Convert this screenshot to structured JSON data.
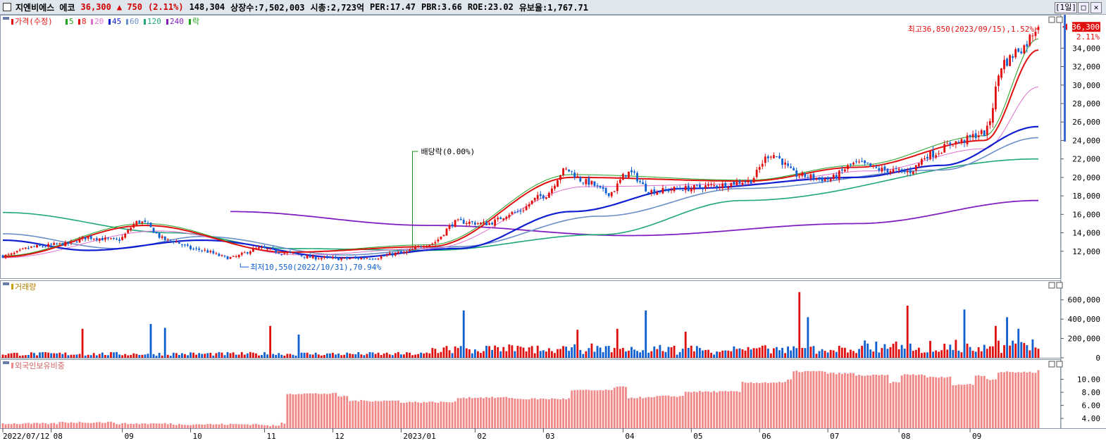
{
  "header": {
    "name": "지엔비에스 에코",
    "price": "36,300",
    "change": "▲ 750",
    "change_pct": "(2.11%)",
    "volume": "148,304",
    "listed": "상장수:7,502,003",
    "cap": "시총:2,723억",
    "per": "PER:17.47",
    "pbr": "PBR:3.66",
    "roe": "ROE:23.02",
    "float": "유보율:1,767.71",
    "period": "[1일]",
    "btn_restore": "□",
    "btn_close": "✕"
  },
  "colors": {
    "up": "#e01010",
    "down": "#1060d0",
    "ma5": "#22a022",
    "ma8": "#e01010",
    "ma20": "#e070d0",
    "ma45": "#1020d0",
    "ma60": "#6a8fc8",
    "ma120": "#20a878",
    "ma240": "#8020c0",
    "foreign": "#f08a8a"
  },
  "legend": {
    "price": "가격(수정)",
    "items": [
      {
        "label": "5",
        "color": "#22a022"
      },
      {
        "label": "8",
        "color": "#e01010"
      },
      {
        "label": "20",
        "color": "#e070d0"
      },
      {
        "label": "45",
        "color": "#1020d0"
      },
      {
        "label": "60",
        "color": "#6a8fc8"
      },
      {
        "label": "120",
        "color": "#20a878"
      },
      {
        "label": "240",
        "color": "#8020c0"
      },
      {
        "label": "락",
        "color": "#22a022"
      }
    ],
    "volume": "거래량",
    "foreign": "외국인보유비중"
  },
  "annotations": {
    "high": "최고36,850(2023/09/15),1.52%",
    "low": "최저10,550(2022/10/31),70.94%",
    "dividend": "배당락(0.00%)",
    "last_price": "36,300",
    "last_pct": "2.11%"
  },
  "chart_data": [
    {
      "type": "candlestick",
      "title": "가격(수정)",
      "x_dates": [
        "2022/07/12",
        "08",
        "09",
        "10",
        "11",
        "12",
        "2023/01",
        "02",
        "03",
        "04",
        "05",
        "06",
        "07",
        "08",
        "09"
      ],
      "ylim": [
        10000,
        37000
      ],
      "yticks": [
        "12,000",
        "14,000",
        "16,000",
        "18,000",
        "20,000",
        "22,000",
        "24,000",
        "26,000",
        "28,000",
        "30,000",
        "32,000",
        "34,000"
      ],
      "close_keypoints": [
        [
          0,
          11500
        ],
        [
          12,
          12500
        ],
        [
          22,
          12800
        ],
        [
          30,
          13500
        ],
        [
          40,
          13200
        ],
        [
          48,
          15200
        ],
        [
          58,
          13200
        ],
        [
          68,
          12200
        ],
        [
          80,
          11300
        ],
        [
          90,
          12300
        ],
        [
          100,
          11800
        ],
        [
          110,
          11300
        ],
        [
          120,
          11200
        ],
        [
          130,
          11300
        ],
        [
          140,
          11800
        ],
        [
          150,
          12800
        ],
        [
          160,
          15200
        ],
        [
          170,
          15000
        ],
        [
          180,
          16200
        ],
        [
          190,
          18000
        ],
        [
          198,
          20800
        ],
        [
          205,
          19500
        ],
        [
          213,
          18300
        ],
        [
          220,
          20500
        ],
        [
          228,
          18500
        ],
        [
          240,
          18800
        ],
        [
          250,
          19100
        ],
        [
          262,
          19600
        ],
        [
          270,
          22500
        ],
        [
          280,
          20200
        ],
        [
          290,
          19800
        ],
        [
          300,
          21500
        ],
        [
          310,
          20800
        ],
        [
          318,
          20600
        ],
        [
          326,
          22500
        ],
        [
          335,
          23800
        ],
        [
          345,
          24800
        ],
        [
          352,
          32500
        ],
        [
          358,
          34000
        ],
        [
          364,
          36300
        ]
      ],
      "ma": {
        "ma5": [
          [
            0,
            11500
          ],
          [
            50,
            15000
          ],
          [
            100,
            11900
          ],
          [
            150,
            12700
          ],
          [
            200,
            20300
          ],
          [
            262,
            19700
          ],
          [
            300,
            21300
          ],
          [
            345,
            24500
          ],
          [
            364,
            35000
          ]
        ],
        "ma8": [
          [
            0,
            11400
          ],
          [
            50,
            14800
          ],
          [
            100,
            11900
          ],
          [
            150,
            12500
          ],
          [
            200,
            20000
          ],
          [
            262,
            19600
          ],
          [
            300,
            21100
          ],
          [
            345,
            24000
          ],
          [
            364,
            33800
          ]
        ],
        "ma20": [
          [
            0,
            11300
          ],
          [
            55,
            14200
          ],
          [
            105,
            11600
          ],
          [
            150,
            12300
          ],
          [
            205,
            19000
          ],
          [
            262,
            19300
          ],
          [
            305,
            20700
          ],
          [
            345,
            23100
          ],
          [
            364,
            29800
          ]
        ],
        "ma45": [
          [
            0,
            13200
          ],
          [
            30,
            12100
          ],
          [
            70,
            13200
          ],
          [
            120,
            11300
          ],
          [
            160,
            12300
          ],
          [
            200,
            16300
          ],
          [
            240,
            18800
          ],
          [
            300,
            20000
          ],
          [
            330,
            21300
          ],
          [
            364,
            25500
          ]
        ],
        "ma60": [
          [
            0,
            13900
          ],
          [
            40,
            12300
          ],
          [
            70,
            13600
          ],
          [
            120,
            11600
          ],
          [
            160,
            12500
          ],
          [
            210,
            15800
          ],
          [
            260,
            18800
          ],
          [
            330,
            20800
          ],
          [
            364,
            24300
          ]
        ],
        "ma120": [
          [
            0,
            16200
          ],
          [
            60,
            14000
          ],
          [
            100,
            12300
          ],
          [
            150,
            12100
          ],
          [
            210,
            13800
          ],
          [
            260,
            17500
          ],
          [
            364,
            22000
          ]
        ],
        "ma240": [
          [
            80,
            16300
          ],
          [
            150,
            14800
          ],
          [
            220,
            13700
          ],
          [
            300,
            15000
          ],
          [
            364,
            17500
          ]
        ]
      },
      "dividend_index": 144,
      "n_days": 365
    },
    {
      "type": "bar",
      "title": "거래량",
      "ylim": [
        0,
        700000
      ],
      "yticks": [
        "0",
        "200,000",
        "400,000",
        "600,000"
      ],
      "spikes": [
        [
          28,
          300000
        ],
        [
          52,
          350000
        ],
        [
          57,
          310000
        ],
        [
          94,
          330000
        ],
        [
          104,
          240000
        ],
        [
          162,
          490000
        ],
        [
          202,
          290000
        ],
        [
          216,
          300000
        ],
        [
          226,
          490000
        ],
        [
          240,
          270000
        ],
        [
          280,
          680000
        ],
        [
          283,
          420000
        ],
        [
          318,
          540000
        ],
        [
          338,
          500000
        ],
        [
          349,
          330000
        ],
        [
          353,
          420000
        ],
        [
          357,
          300000
        ]
      ]
    },
    {
      "type": "bar",
      "title": "외국인보유비중",
      "ylim": [
        2.5,
        12
      ],
      "yticks": [
        "4.00",
        "6.00",
        "8.00",
        "10.00"
      ],
      "levels": [
        [
          0,
          3.2
        ],
        [
          20,
          3.4
        ],
        [
          40,
          3.2
        ],
        [
          60,
          3.1
        ],
        [
          92,
          2.9
        ],
        [
          98,
          3.3
        ],
        [
          100,
          7.8
        ],
        [
          118,
          7.4
        ],
        [
          122,
          6.7
        ],
        [
          140,
          6.5
        ],
        [
          160,
          7.2
        ],
        [
          180,
          7.0
        ],
        [
          200,
          8.3
        ],
        [
          215,
          8.8
        ],
        [
          220,
          7.2
        ],
        [
          230,
          7.4
        ],
        [
          240,
          8.1
        ],
        [
          260,
          9.5
        ],
        [
          276,
          9.9
        ],
        [
          278,
          11.2
        ],
        [
          290,
          10.9
        ],
        [
          300,
          10.6
        ],
        [
          312,
          9.5
        ],
        [
          316,
          10.7
        ],
        [
          325,
          10.3
        ],
        [
          334,
          9.2
        ],
        [
          342,
          10.6
        ],
        [
          346,
          10.0
        ],
        [
          350,
          11.1
        ],
        [
          364,
          11.3
        ]
      ]
    }
  ]
}
